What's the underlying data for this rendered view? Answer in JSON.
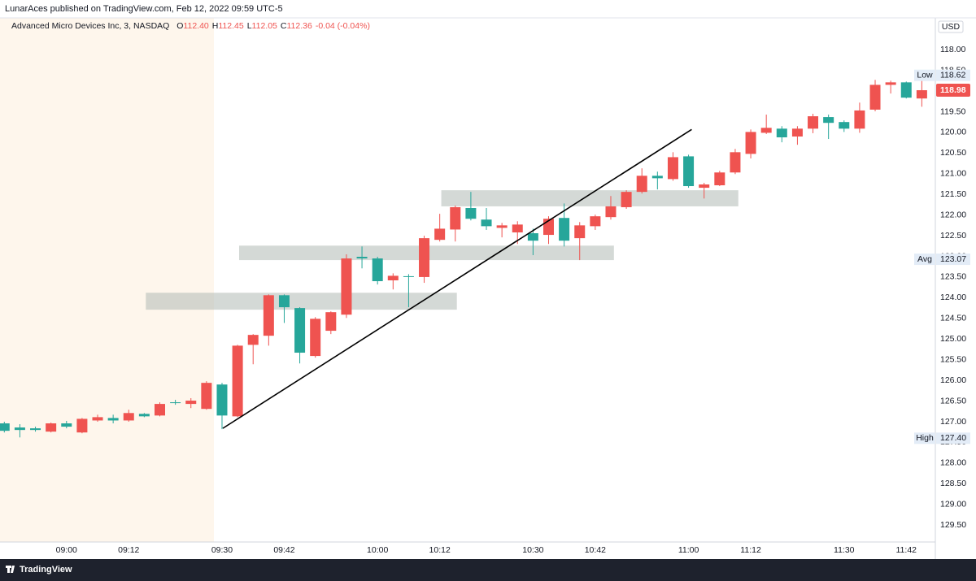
{
  "header": "LunarAces published on TradingView.com, Feb 12, 2022 09:59 UTC-5",
  "footer": "TradingView",
  "chart_data": {
    "type": "candlestick",
    "symbol": "Advanced Micro Devices Inc, 3, NASDAQ",
    "ohlc": [
      {
        "label": "O",
        "value": "112.40"
      },
      {
        "label": "H",
        "value": "112.45"
      },
      {
        "label": "L",
        "value": "112.05"
      },
      {
        "label": "C",
        "value": "112.36"
      }
    ],
    "change": "-0.04 (-0.04%)",
    "currency": "USD",
    "categories": [
      null,
      null,
      null,
      null,
      "09:00",
      null,
      null,
      null,
      "09:12",
      null,
      null,
      null,
      null,
      null,
      "09:30",
      null,
      null,
      null,
      "09:42",
      null,
      null,
      null,
      null,
      null,
      "10:00",
      null,
      null,
      null,
      "10:12",
      null,
      null,
      null,
      null,
      null,
      "10:30",
      null,
      null,
      null,
      "10:42",
      null,
      null,
      null,
      null,
      null,
      "11:00",
      null,
      null,
      null,
      "11:12",
      null,
      null,
      null,
      null,
      null,
      "11:30",
      null,
      null,
      null,
      "11:42",
      null
    ],
    "open": [
      127.04,
      127.14,
      127.16,
      127.24,
      127.04,
      127.26,
      126.97,
      126.91,
      126.97,
      126.81,
      126.85,
      126.53,
      126.57,
      126.69,
      126.1,
      126.87,
      125.14,
      124.92,
      123.94,
      124.25,
      125.41,
      124.8,
      124.41,
      123.01,
      123.05,
      123.58,
      123.48,
      123.5,
      122.6,
      122.35,
      121.83,
      122.11,
      122.31,
      122.42,
      122.44,
      122.48,
      122.07,
      122.56,
      122.27,
      122.05,
      121.81,
      121.44,
      121.05,
      121.13,
      120.58,
      121.34,
      121.28,
      120.97,
      120.52,
      120.01,
      119.91,
      120.1,
      119.91,
      119.63,
      119.75,
      119.91,
      119.45,
      118.85,
      118.79,
      119.18
    ],
    "high": [
      127.26,
      127.38,
      127.24,
      127.26,
      127.16,
      127.28,
      127.0,
      127.04,
      127.0,
      126.89,
      126.87,
      126.59,
      126.67,
      126.71,
      127.18,
      126.89,
      125.61,
      125.16,
      124.61,
      125.59,
      125.45,
      124.88,
      124.49,
      123.29,
      123.68,
      123.8,
      124.23,
      123.64,
      122.64,
      122.64,
      122.13,
      122.36,
      122.54,
      122.7,
      122.97,
      122.7,
      122.76,
      123.09,
      122.36,
      122.11,
      121.85,
      121.48,
      121.38,
      121.17,
      121.34,
      121.6,
      121.3,
      121.01,
      120.63,
      120.04,
      120.24,
      120.3,
      120.02,
      120.16,
      119.99,
      120.01,
      119.49,
      119.06,
      119.18,
      119.38
    ],
    "low": [
      127.0,
      127.06,
      127.12,
      127.02,
      126.98,
      126.91,
      126.83,
      126.83,
      126.71,
      126.79,
      126.53,
      126.47,
      126.43,
      126.02,
      126.06,
      125.14,
      124.88,
      123.92,
      123.92,
      124.23,
      124.47,
      124.33,
      122.95,
      122.76,
      123.01,
      123.41,
      123.43,
      122.5,
      121.97,
      121.77,
      121.44,
      121.83,
      122.19,
      122.15,
      122.33,
      122.03,
      121.72,
      122.17,
      121.99,
      121.54,
      121.4,
      120.87,
      120.95,
      120.48,
      120.54,
      121.22,
      120.93,
      120.4,
      119.93,
      119.57,
      119.85,
      119.85,
      119.55,
      119.57,
      119.71,
      119.28,
      118.73,
      118.75,
      118.77,
      118.71
    ],
    "close": [
      127.22,
      127.2,
      127.2,
      127.04,
      127.12,
      126.93,
      126.89,
      126.97,
      126.79,
      126.87,
      126.57,
      126.55,
      126.49,
      126.06,
      126.85,
      125.16,
      124.9,
      123.94,
      124.23,
      125.33,
      124.51,
      124.35,
      123.05,
      123.05,
      123.6,
      123.47,
      123.5,
      122.56,
      122.33,
      121.81,
      122.09,
      122.27,
      122.25,
      122.23,
      122.62,
      122.09,
      122.62,
      122.25,
      122.03,
      121.79,
      121.44,
      121.05,
      121.11,
      120.6,
      121.3,
      121.26,
      120.97,
      120.48,
      119.99,
      119.89,
      120.12,
      119.91,
      119.61,
      119.77,
      119.91,
      119.47,
      118.85,
      118.79,
      119.16,
      118.98
    ],
    "up_color": "#26a69a",
    "down_color": "#ef5350",
    "invert": true,
    "grid": false,
    "ylim": [
      117.23,
      129.91
    ],
    "yticks": [
      {
        "value": 118,
        "label": "118.00"
      },
      {
        "value": 118.5,
        "label": "118.50"
      },
      {
        "value": 119,
        "label": "119.00"
      },
      {
        "value": 119.5,
        "label": "119.50"
      },
      {
        "value": 120,
        "label": "120.00"
      },
      {
        "value": 120.5,
        "label": "120.50"
      },
      {
        "value": 121,
        "label": "121.00"
      },
      {
        "value": 121.5,
        "label": "121.50"
      },
      {
        "value": 122,
        "label": "122.00"
      },
      {
        "value": 122.5,
        "label": "122.50"
      },
      {
        "value": 123,
        "label": "123.00"
      },
      {
        "value": 123.5,
        "label": "123.50"
      },
      {
        "value": 124,
        "label": "124.00"
      },
      {
        "value": 124.5,
        "label": "124.50"
      },
      {
        "value": 125,
        "label": "125.00"
      },
      {
        "value": 125.5,
        "label": "125.50"
      },
      {
        "value": 126,
        "label": "126.00"
      },
      {
        "value": 126.5,
        "label": "126.50"
      },
      {
        "value": 127,
        "label": "127.00"
      },
      {
        "value": 127.5,
        "label": "127.50"
      },
      {
        "value": 128,
        "label": "128.00"
      },
      {
        "value": 128.5,
        "label": "128.50"
      },
      {
        "value": 129,
        "label": "129.00"
      },
      {
        "value": 129.5,
        "label": "129.50"
      }
    ],
    "markers": [
      {
        "name": "Low",
        "value": 118.62,
        "value_label": "118.62"
      },
      {
        "name": "Avg",
        "value": 123.07,
        "value_label": "123.07"
      },
      {
        "name": "High",
        "value": 127.4,
        "value_label": "127.40"
      }
    ],
    "zones": [
      {
        "x": [
          9.1,
          29.1
        ],
        "y": [
          123.88,
          124.29
        ]
      },
      {
        "x": [
          15.1,
          39.2
        ],
        "y": [
          122.74,
          123.09
        ]
      },
      {
        "x": [
          28.1,
          47.2
        ],
        "y": [
          121.4,
          121.79
        ]
      }
    ],
    "trendline": {
      "x": [
        14.05,
        44.2
      ],
      "y": [
        127.16,
        119.93
      ]
    }
  }
}
